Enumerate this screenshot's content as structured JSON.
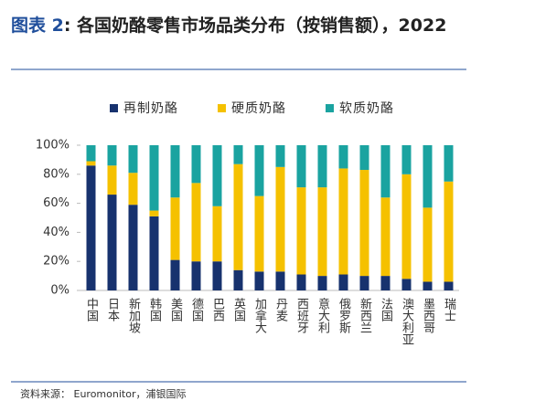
{
  "chart_data": {
    "type": "stacked_bar",
    "figure_label": "图表 2",
    "title": ": 各国奶酪零售市场品类分布（按销售额），2022",
    "source": "资料来源： Euromonitor，浦银国际",
    "categories": [
      "中国",
      "日本",
      "新加坡",
      "韩国",
      "美国",
      "德国",
      "巴西",
      "英国",
      "加拿大",
      "丹麦",
      "西班牙",
      "意大利",
      "俄罗斯",
      "新西兰",
      "法国",
      "澳大利亚",
      "墨西哥",
      "瑞士"
    ],
    "series": [
      {
        "name": "再制奶酪",
        "color": "#17326e",
        "values": [
          86,
          66,
          59,
          51,
          21,
          20,
          20,
          14,
          13,
          13,
          11,
          10,
          11,
          10,
          10,
          8,
          6,
          6
        ]
      },
      {
        "name": "硬质奶酪",
        "color": "#f5c100",
        "values": [
          3,
          20,
          22,
          4,
          43,
          54,
          38,
          73,
          52,
          72,
          60,
          61,
          73,
          73,
          54,
          72,
          51,
          69
        ]
      },
      {
        "name": "软质奶酪",
        "color": "#1aa3a0",
        "values": [
          11,
          14,
          19,
          45,
          36,
          26,
          42,
          13,
          35,
          15,
          29,
          29,
          16,
          17,
          36,
          20,
          43,
          25
        ]
      }
    ],
    "ylim": [
      0,
      100
    ],
    "yticks": [
      {
        "value": 0,
        "label": "0%"
      },
      {
        "value": 20,
        "label": "20%"
      },
      {
        "value": 40,
        "label": "40%"
      },
      {
        "value": 60,
        "label": "60%"
      },
      {
        "value": 80,
        "label": "80%"
      },
      {
        "value": 100,
        "label": "100%"
      }
    ],
    "legend": "top"
  }
}
